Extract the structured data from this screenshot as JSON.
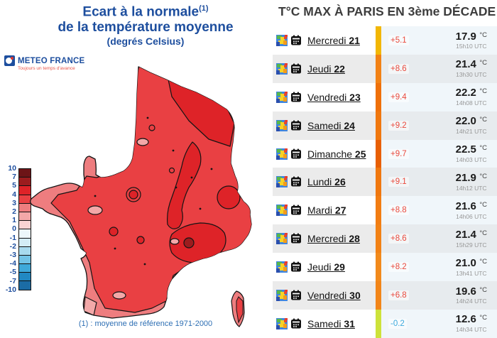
{
  "left": {
    "title_line1": "Ecart à la normale",
    "title_sup": "(1)",
    "title_line2": "de la température moyenne",
    "title_line3": "(degrés Celsius)",
    "logo": {
      "name": "METEO FRANCE",
      "tagline": "Toujours un temps d'avance"
    },
    "footnote": "(1) : moyenne de référence 1971-2000",
    "legend": {
      "labels": [
        "10",
        "7",
        "5",
        "4",
        "3",
        "2",
        "1",
        "0",
        "-1",
        "-2",
        "-3",
        "-4",
        "-5",
        "-7",
        "-10"
      ],
      "cells": [
        {
          "color": "#6d1417",
          "dotted": true
        },
        {
          "color": "#9c1c1e",
          "dotted": false
        },
        {
          "color": "#de2328",
          "dotted": false
        },
        {
          "color": "#e94043",
          "dotted": false
        },
        {
          "color": "#ee7d7f",
          "dotted": false
        },
        {
          "color": "#f3a8a8",
          "dotted": false
        },
        {
          "color": "#f9d3d3",
          "dotted": false
        },
        {
          "color": "#edf7fa",
          "dotted": true
        },
        {
          "color": "#d3ecf5",
          "dotted": true
        },
        {
          "color": "#a8daee",
          "dotted": false
        },
        {
          "color": "#72c3e6",
          "dotted": false
        },
        {
          "color": "#3fa9da",
          "dotted": false
        },
        {
          "color": "#2188c2",
          "dotted": false
        },
        {
          "color": "#1b6ca5",
          "dotted": false
        }
      ]
    }
  },
  "right": {
    "title": "T°C MAX À PARIS EN 3ème DÉCADE",
    "days": [
      {
        "name": "Mercredi",
        "num": "21",
        "anomaly": "+5.1",
        "anomaly_color": "#e94a3d",
        "bar_color": "#f2b705",
        "temp": "17.9",
        "unit": "°C",
        "time": "15h10 UTC"
      },
      {
        "name": "Jeudi",
        "num": "22",
        "anomaly": "+8.6",
        "anomaly_color": "#e94a3d",
        "bar_color": "#f28114",
        "temp": "21.4",
        "unit": "°C",
        "time": "13h30 UTC"
      },
      {
        "name": "Vendredi",
        "num": "23",
        "anomaly": "+9.4",
        "anomaly_color": "#e94a3d",
        "bar_color": "#ef700a",
        "temp": "22.2",
        "unit": "°C",
        "time": "14h08 UTC"
      },
      {
        "name": "Samedi",
        "num": "24",
        "anomaly": "+9.2",
        "anomaly_color": "#e94a3d",
        "bar_color": "#f0770e",
        "temp": "22.0",
        "unit": "°C",
        "time": "14h21 UTC"
      },
      {
        "name": "Dimanche",
        "num": "25",
        "anomaly": "+9.7",
        "anomaly_color": "#e94a3d",
        "bar_color": "#e85f04",
        "temp": "22.5",
        "unit": "°C",
        "time": "14h03 UTC"
      },
      {
        "name": "Lundi",
        "num": "26",
        "anomaly": "+9.1",
        "anomaly_color": "#e94a3d",
        "bar_color": "#f0770e",
        "temp": "21.9",
        "unit": "°C",
        "time": "14h12 UTC"
      },
      {
        "name": "Mardi",
        "num": "27",
        "anomaly": "+8.8",
        "anomaly_color": "#e94a3d",
        "bar_color": "#f27d12",
        "temp": "21.6",
        "unit": "°C",
        "time": "14h06 UTC"
      },
      {
        "name": "Mercredi",
        "num": "28",
        "anomaly": "+8.6",
        "anomaly_color": "#e94a3d",
        "bar_color": "#f28114",
        "temp": "21.4",
        "unit": "°C",
        "time": "15h29 UTC"
      },
      {
        "name": "Jeudi",
        "num": "29",
        "anomaly": "+8.2",
        "anomaly_color": "#e94a3d",
        "bar_color": "#f28a1c",
        "temp": "21.0",
        "unit": "°C",
        "time": "13h41 UTC"
      },
      {
        "name": "Vendredi",
        "num": "30",
        "anomaly": "+6.8",
        "anomaly_color": "#e94a3d",
        "bar_color": "#f28518",
        "temp": "19.6",
        "unit": "°C",
        "time": "14h24 UTC"
      },
      {
        "name": "Samedi",
        "num": "31",
        "anomaly": "-0.2",
        "anomaly_color": "#3da9dc",
        "bar_color": "#cde23a",
        "temp": "12.6",
        "unit": "°C",
        "time": "14h34 UTC"
      }
    ]
  }
}
